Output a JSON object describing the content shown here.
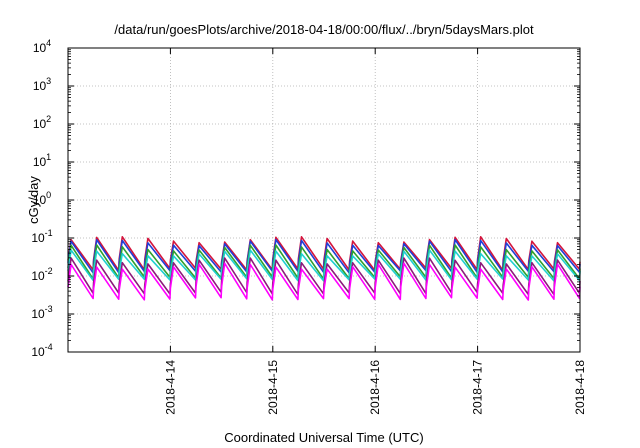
{
  "chart_data": {
    "type": "line",
    "title": "/data/run/goesPlots/archive/2018-04-18/00:00/flux/../bryn/5daysMars.plot",
    "xlabel": "Coordinated Universal Time (UTC)",
    "ylabel": "cGy/day",
    "x_range": [
      "2018-04-13T00:00",
      "2018-04-18T00:00"
    ],
    "x_ticks": [
      "2018-4-14",
      "2018-4-15",
      "2018-4-16",
      "2018-4-17",
      "2018-4-18"
    ],
    "y_scale": "log",
    "ylim": [
      0.0001,
      10000
    ],
    "y_ticks": [
      {
        "base": "10",
        "exp": "-4"
      },
      {
        "base": "10",
        "exp": "-3"
      },
      {
        "base": "10",
        "exp": "-2"
      },
      {
        "base": "10",
        "exp": "-1"
      },
      {
        "base": "10",
        "exp": "0"
      },
      {
        "base": "10",
        "exp": "1"
      },
      {
        "base": "10",
        "exp": "2"
      },
      {
        "base": "10",
        "exp": "3"
      },
      {
        "base": "10",
        "exp": "4"
      }
    ],
    "grid": true,
    "sawtooth_period_hours": 6,
    "series": [
      {
        "color": "#d4143c",
        "peak": 0.09,
        "trough": 0.015
      },
      {
        "color": "#1f3fd8",
        "peak": 0.075,
        "trough": 0.013
      },
      {
        "color": "#2fa02f",
        "peak": 0.055,
        "trough": 0.009
      },
      {
        "color": "#20d0d0",
        "peak": 0.04,
        "trough": 0.008
      },
      {
        "color": "#8c1a7a",
        "peak": 0.025,
        "trough": 0.0035
      },
      {
        "color": "#ff00ff",
        "peak": 0.018,
        "trough": 0.0025
      }
    ]
  }
}
